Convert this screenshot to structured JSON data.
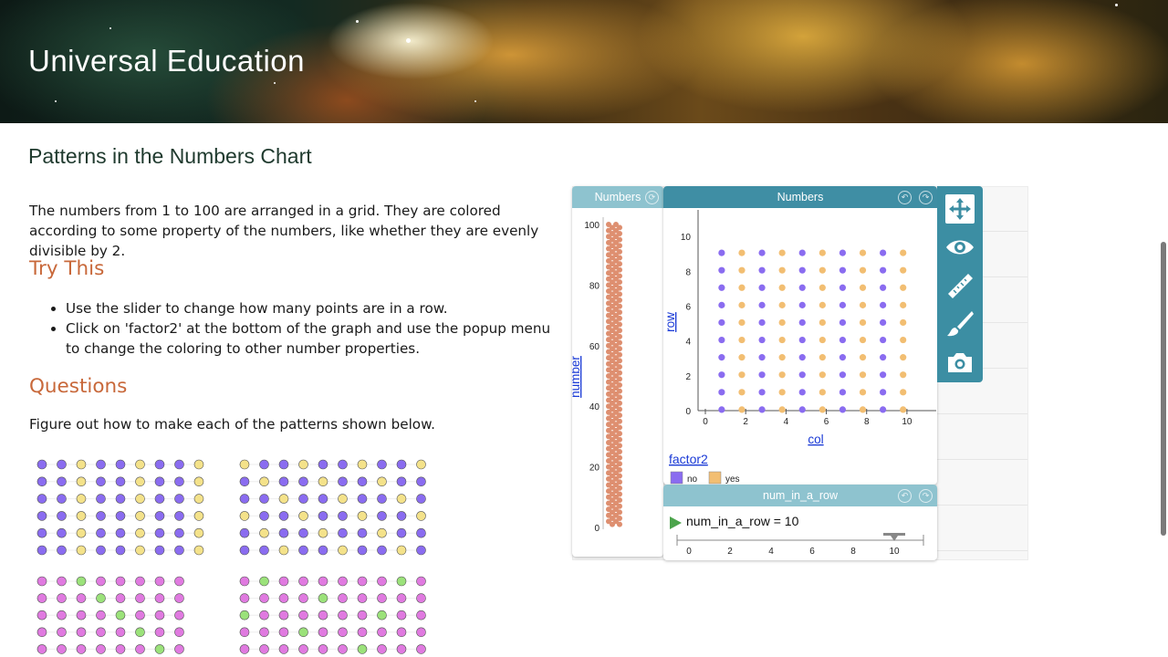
{
  "banner": {
    "title": "Universal Education"
  },
  "page": {
    "title": "Patterns in the Numbers Chart",
    "intro": "The numbers from 1 to 100 are arranged in a grid. They are colored according to some property of the numbers, like whether they are evenly divisible by 2.",
    "try_heading": "Try This",
    "bullets": [
      "Use the slider to change how many points are in a row.",
      "Click on 'factor2' at the bottom of the graph and use the popup menu to change the coloring to other number properties."
    ],
    "questions_heading": "Questions",
    "figure_text": "Figure out how to make each of the patterns shown below."
  },
  "patterns": [
    {
      "cols": 9,
      "rows": 6,
      "palette": "py",
      "rule": "mod2"
    },
    {
      "cols": 10,
      "rows": 6,
      "palette": "py",
      "rule": "mod3"
    },
    {
      "cols": 8,
      "rows": 5,
      "palette": "pg",
      "rule": "mod7_8"
    },
    {
      "cols": 10,
      "rows": 5,
      "palette": "pg",
      "rule": "mod7_10"
    }
  ],
  "colors": {
    "purple": "#8a6cf0",
    "yellow": "#f4e28a",
    "pink": "#e07ae0",
    "green": "#9be27a",
    "codap_header": "#3f8ea4",
    "codap_header_light": "#8ec3cf",
    "no": "#8a6cf0",
    "yes": "#f2be72",
    "case_dot": "#de8f70"
  },
  "codap": {
    "case_table": {
      "title": "Numbers",
      "axis_label": "number",
      "ticks": [
        "100",
        "80",
        "60",
        "40",
        "20",
        "0"
      ]
    },
    "graph": {
      "title": "Numbers",
      "x_label": "col",
      "y_label": "row",
      "x_ticks": [
        "0",
        "2",
        "4",
        "6",
        "8",
        "10"
      ],
      "y_ticks": [
        "0",
        "2",
        "4",
        "6",
        "8",
        "10"
      ],
      "legend_attr": "factor2",
      "legend_items": [
        "no",
        "yes"
      ]
    },
    "slider": {
      "title": "num_in_a_row",
      "label": "num_in_a_row = 10",
      "value": 10,
      "ticks": [
        "0",
        "2",
        "4",
        "6",
        "8",
        "10"
      ]
    },
    "tools": [
      "move-icon",
      "eye-icon",
      "ruler-icon",
      "brush-icon",
      "camera-icon"
    ]
  }
}
